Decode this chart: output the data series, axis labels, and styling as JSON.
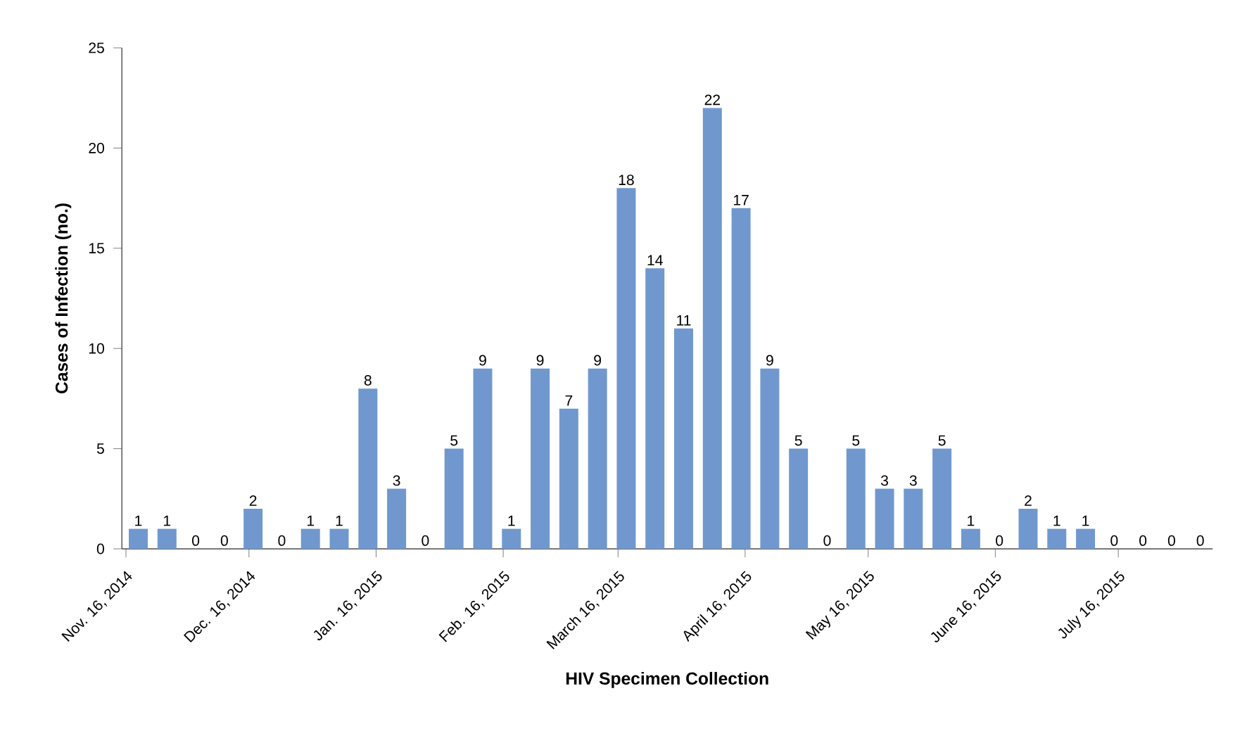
{
  "chart_data": {
    "type": "bar",
    "xlabel": "HIV Specimen Collection",
    "ylabel": "Cases of Infection (no.)",
    "x": [
      "2014-11-19",
      "2014-11-26",
      "2014-12-03",
      "2014-12-10",
      "2014-12-17",
      "2014-12-24",
      "2014-12-31",
      "2015-01-07",
      "2015-01-14",
      "2015-01-21",
      "2015-01-28",
      "2015-02-04",
      "2015-02-11",
      "2015-02-18",
      "2015-02-25",
      "2015-03-04",
      "2015-03-11",
      "2015-03-18",
      "2015-03-25",
      "2015-04-01",
      "2015-04-08",
      "2015-04-15",
      "2015-04-22",
      "2015-04-29",
      "2015-05-06",
      "2015-05-13",
      "2015-05-20",
      "2015-05-27",
      "2015-06-03",
      "2015-06-10",
      "2015-06-17",
      "2015-06-24",
      "2015-07-01",
      "2015-07-08",
      "2015-07-15",
      "2015-07-22",
      "2015-07-29",
      "2015-08-05"
    ],
    "values": [
      1,
      1,
      0,
      0,
      2,
      0,
      1,
      1,
      8,
      3,
      0,
      5,
      9,
      1,
      9,
      7,
      9,
      18,
      14,
      11,
      22,
      17,
      9,
      5,
      0,
      5,
      3,
      3,
      5,
      1,
      0,
      2,
      1,
      1,
      0,
      0,
      0,
      0
    ],
    "color": "#7098cf",
    "xlim": [
      "2014-11-15",
      "2015-08-08"
    ],
    "xticks": [
      {
        "value": "2014-11-16",
        "label": "Nov. 16, 2014"
      },
      {
        "value": "2014-12-16",
        "label": "Dec. 16, 2014"
      },
      {
        "value": "2015-01-16",
        "label": "Jan. 16, 2015"
      },
      {
        "value": "2015-02-16",
        "label": "Feb. 16, 2015"
      },
      {
        "value": "2015-03-16",
        "label": "March 16, 2015"
      },
      {
        "value": "2015-04-16",
        "label": "April 16, 2015"
      },
      {
        "value": "2015-05-16",
        "label": "May 16, 2015"
      },
      {
        "value": "2015-06-16",
        "label": "June 16, 2015"
      },
      {
        "value": "2015-07-16",
        "label": "July 16, 2015"
      }
    ],
    "ylim": [
      0,
      25
    ],
    "yticks": [
      0,
      5,
      10,
      15,
      20,
      25
    ],
    "data_labels": true,
    "grid": false
  }
}
